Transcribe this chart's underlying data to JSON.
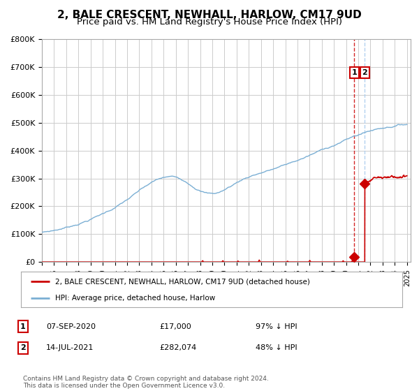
{
  "title": "2, BALE CRESCENT, NEWHALL, HARLOW, CM17 9UD",
  "subtitle": "Price paid vs. HM Land Registry's House Price Index (HPI)",
  "title_fontsize": 11,
  "subtitle_fontsize": 9.5,
  "ylim": [
    0,
    800000
  ],
  "yticks": [
    0,
    100000,
    200000,
    300000,
    400000,
    500000,
    600000,
    700000,
    800000
  ],
  "ytick_labels": [
    "£0",
    "£100K",
    "£200K",
    "£300K",
    "£400K",
    "£500K",
    "£600K",
    "£700K",
    "£800K"
  ],
  "hpi_color": "#7bafd4",
  "hpi_dash_color": "#aaccee",
  "price_color": "#cc0000",
  "price_dash_color": "#cc0000",
  "marker_color": "#cc0000",
  "background_color": "#ffffff",
  "grid_color": "#cccccc",
  "legend_label_red": "2, BALE CRESCENT, NEWHALL, HARLOW, CM17 9UD (detached house)",
  "legend_label_blue": "HPI: Average price, detached house, Harlow",
  "annotation1_date": "07-SEP-2020",
  "annotation1_price": "£17,000",
  "annotation1_pct": "97% ↓ HPI",
  "annotation2_date": "14-JUL-2021",
  "annotation2_price": "£282,074",
  "annotation2_pct": "48% ↓ HPI",
  "footer": "Contains HM Land Registry data © Crown copyright and database right 2024.\nThis data is licensed under the Open Government Licence v3.0.",
  "sale1_year": 2020.68,
  "sale1_price": 17000,
  "sale2_year": 2021.54,
  "sale2_price": 282074
}
